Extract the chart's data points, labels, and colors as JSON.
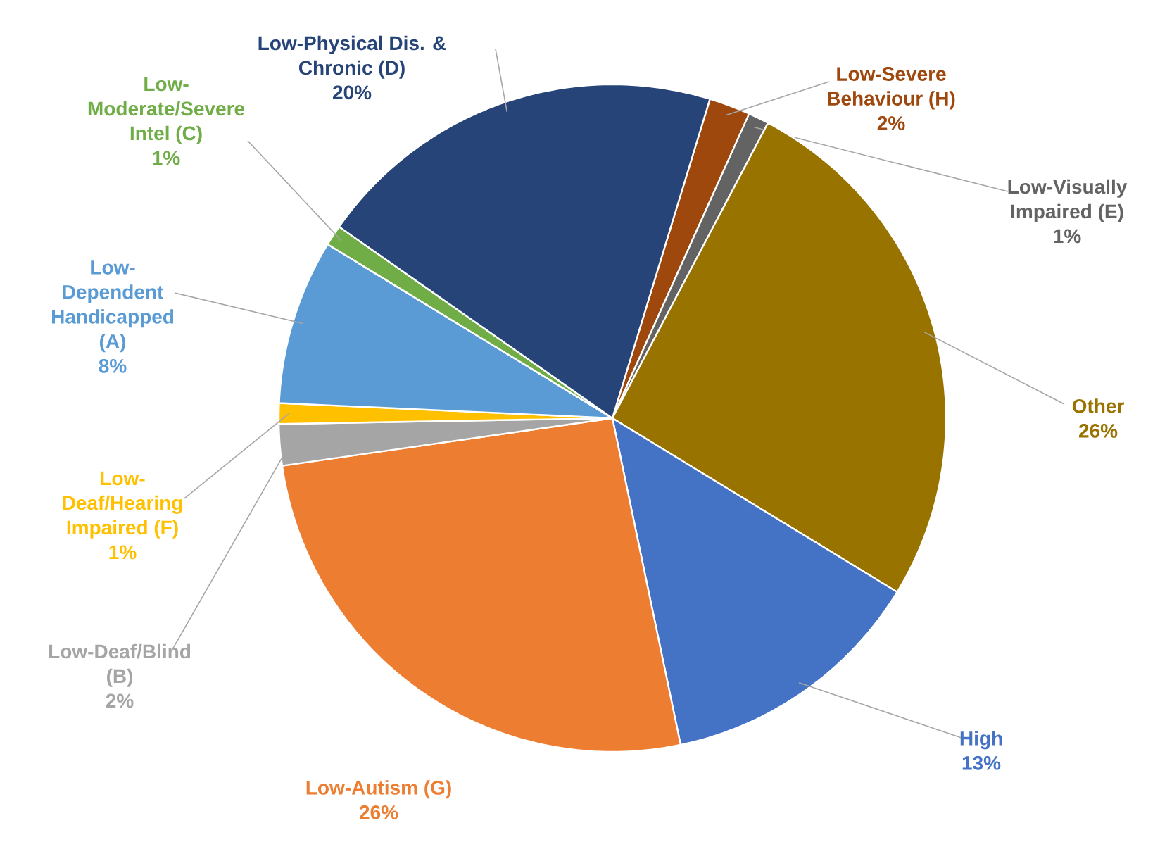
{
  "chart_data": {
    "type": "pie",
    "categories": [
      "Low-Severe Behaviour (H)",
      "Low-Visually Impaired (E)",
      "Other",
      "High",
      "Low-Autism (G)",
      "Low-Deaf/Blind (B)",
      "Low-Deaf/Hearing Impaired (F)",
      "Low-Dependent Handicapped (A)",
      "Low-Moderate/Severe Intel (C)",
      "Low-Physical Dis. & Chronic (D)"
    ],
    "values": [
      2,
      1,
      26,
      13,
      26,
      2,
      1,
      8,
      1,
      20
    ],
    "value_labels": [
      "2%",
      "1%",
      "26%",
      "13%",
      "26%",
      "2%",
      "1%",
      "8%",
      "1%",
      "20%"
    ],
    "colors": [
      "#9e480e",
      "#636363",
      "#997300",
      "#4472c4",
      "#ed7d31",
      "#a5a5a5",
      "#ffc000",
      "#5b9bd5",
      "#70ad47",
      "#264478"
    ]
  }
}
